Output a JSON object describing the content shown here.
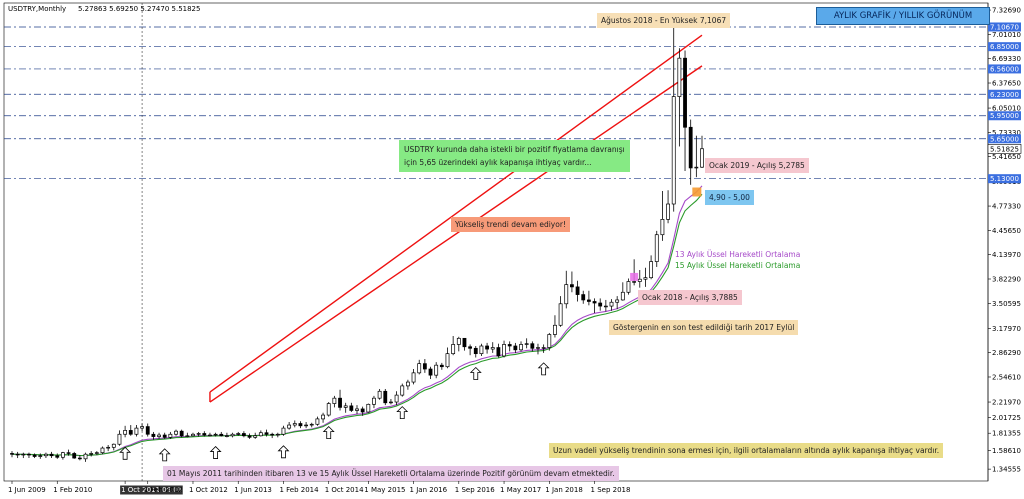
{
  "header": {
    "symbol": "USDTRY,Monthly",
    "ohlc": "5.27863 5.69250 5.27470 5.51825"
  },
  "title": "AYLIK GRAFİK / YILLIK GÖRÜNÜM",
  "annotations": {
    "ath": "Ağustos 2018 - En Yüksek 7,1067",
    "green_note_line1": "USDTRY kurunda daha istekli bir pozitif fiyatlama davranışı",
    "green_note_line2": "için 5,65 üzerindeki aylık kapanışa ihtiyaç vardır...",
    "ocak2019": "Ocak 2019 - Açılış 5,2785",
    "support_zone": "4,90 - 5,00",
    "trend": "Yükseliş trendi devam ediyor!",
    "ema13": "13 Aylık Üssel Hareketli Ortalama",
    "ema15": "15 Aylık Üssel Hareketli Ortalama",
    "ocak2018": "Ocak 2018 - Açılış 3,7885",
    "last_test": "Göstergenin en son test edildiği tarih 2017 Eylül",
    "warning": "Uzun vadeli yükseliş trendinin sona ermesi için, ilgili ortalamaların altında aylık kapanışa ihtiyaç vardır.",
    "footer_note": "01 Mayıs 2011 tarihinden itibaren 13 ve 15 Aylık Üssel Hareketli Ortalama üzerinde Pozitif görünüm devam etmektedir."
  },
  "colors": {
    "ema13": "#a64ac9",
    "ema15": "#2a9a2a",
    "channel": "#ee1111",
    "level_line": "#1f3c88",
    "price_label_bg": "#3b6fe0",
    "title_bg": "#5aa9ea"
  },
  "chart_data": {
    "type": "candlestick",
    "title": "AYLIK GRAFİK / YILLIK GÖRÜNÜM",
    "timeframe": "Monthly",
    "x_tick_labels": [
      "1 Jun 2009",
      "1 Feb 2010",
      "1 Oct 2011.05.01 00:00",
      "1 Feb 2012",
      "1 Oct 2012",
      "1 Jun 2013",
      "1 Feb 2014",
      "1 Oct 2014",
      "1 May 2015",
      "1 Jan 2016",
      "1 Sep 2016",
      "1 May 2017",
      "1 Jan 2018",
      "1 Sep 2018"
    ],
    "x_tick_index": [
      0,
      8,
      20,
      24,
      32,
      40,
      48,
      56,
      63,
      71,
      79,
      87,
      95,
      103
    ],
    "y_ticks": [
      1.34555,
      1.5861,
      1.81355,
      2.01725,
      2.2197,
      2.5461,
      2.8629,
      3.1797,
      3.50595,
      3.8229,
      4.1397,
      4.4565,
      4.7733,
      5.0901,
      5.4165,
      5.7333,
      6.0501,
      6.3765,
      6.6933,
      7.0101,
      7.3269
    ],
    "ylim": [
      1.23,
      7.38
    ],
    "level_labels": [
      7.1067,
      6.85,
      6.56,
      6.23,
      5.95,
      5.65,
      5.51825,
      5.13
    ],
    "level_lines": [
      7.1067,
      6.85,
      6.56,
      6.23,
      5.95,
      5.65,
      5.13
    ],
    "series": [
      {
        "name": "USDTRY",
        "kind": "ohlc",
        "open": [
          1.55,
          1.54,
          1.53,
          1.54,
          1.53,
          1.51,
          1.52,
          1.54,
          1.52,
          1.5,
          1.56,
          1.55,
          1.49,
          1.48,
          1.54,
          1.55,
          1.56,
          1.62,
          1.63,
          1.67,
          1.8,
          1.85,
          1.8,
          1.88,
          1.9,
          1.8,
          1.77,
          1.79,
          1.76,
          1.8,
          1.84,
          1.78,
          1.78,
          1.8,
          1.81,
          1.79,
          1.79,
          1.8,
          1.78,
          1.78,
          1.8,
          1.81,
          1.78,
          1.76,
          1.78,
          1.82,
          1.8,
          1.79,
          1.8,
          1.88,
          1.92,
          1.94,
          1.91,
          1.92,
          1.93,
          2.0,
          2.05,
          2.2,
          2.27,
          2.15,
          2.17,
          2.11,
          2.13,
          2.09,
          2.19,
          2.27,
          2.36,
          2.21,
          2.22,
          2.31,
          2.43,
          2.48,
          2.6,
          2.72,
          2.65,
          2.57,
          2.7,
          2.68,
          2.85,
          2.97,
          3.05,
          2.94,
          2.92,
          2.85,
          2.95,
          2.91,
          2.93,
          2.82,
          2.97,
          2.95,
          2.9,
          2.97,
          2.98,
          2.92,
          2.93,
          2.93,
          3.1,
          3.22,
          3.5,
          3.75,
          3.72,
          3.62,
          3.55,
          3.53,
          3.51,
          3.47,
          3.47,
          3.52,
          3.55,
          3.65,
          3.79,
          3.79,
          3.82,
          3.84,
          4.05,
          4.4,
          4.6,
          4.8,
          6.2,
          6.7,
          5.8,
          5.27,
          5.28
        ],
        "high": [
          1.58,
          1.57,
          1.56,
          1.56,
          1.55,
          1.55,
          1.56,
          1.57,
          1.55,
          1.57,
          1.6,
          1.57,
          1.53,
          1.56,
          1.58,
          1.58,
          1.64,
          1.66,
          1.68,
          1.85,
          1.91,
          1.92,
          1.92,
          1.94,
          1.94,
          1.83,
          1.82,
          1.82,
          1.83,
          1.86,
          1.86,
          1.82,
          1.82,
          1.83,
          1.84,
          1.82,
          1.82,
          1.83,
          1.82,
          1.82,
          1.83,
          1.84,
          1.81,
          1.82,
          1.85,
          1.86,
          1.82,
          1.82,
          1.91,
          1.96,
          1.98,
          1.97,
          1.96,
          1.95,
          2.03,
          2.08,
          2.22,
          2.3,
          2.38,
          2.21,
          2.21,
          2.18,
          2.16,
          2.2,
          2.3,
          2.39,
          2.39,
          2.26,
          2.36,
          2.46,
          2.51,
          2.65,
          2.77,
          2.78,
          2.68,
          2.74,
          2.73,
          2.93,
          3.08,
          3.07,
          3.01,
          2.97,
          2.95,
          2.98,
          2.99,
          3.0,
          2.98,
          3.02,
          3.01,
          2.99,
          3.01,
          3.05,
          3.01,
          2.98,
          2.97,
          3.12,
          3.35,
          3.6,
          3.93,
          3.92,
          3.8,
          3.67,
          3.67,
          3.57,
          3.57,
          3.55,
          3.56,
          3.6,
          3.78,
          3.83,
          4.08,
          3.94,
          3.97,
          4.13,
          4.45,
          4.97,
          4.98,
          7.11,
          6.83,
          6.8,
          5.9,
          5.69,
          5.69
        ],
        "low": [
          1.5,
          1.49,
          1.49,
          1.49,
          1.49,
          1.48,
          1.49,
          1.49,
          1.48,
          1.47,
          1.52,
          1.48,
          1.46,
          1.44,
          1.51,
          1.53,
          1.54,
          1.58,
          1.59,
          1.65,
          1.76,
          1.78,
          1.77,
          1.84,
          1.77,
          1.73,
          1.74,
          1.74,
          1.74,
          1.78,
          1.76,
          1.76,
          1.77,
          1.77,
          1.77,
          1.77,
          1.77,
          1.77,
          1.76,
          1.76,
          1.78,
          1.76,
          1.74,
          1.74,
          1.77,
          1.77,
          1.75,
          1.76,
          1.78,
          1.86,
          1.89,
          1.88,
          1.88,
          1.89,
          1.91,
          1.95,
          2.03,
          2.15,
          2.11,
          2.08,
          2.09,
          2.06,
          2.04,
          2.08,
          2.14,
          2.25,
          2.18,
          2.19,
          2.18,
          2.29,
          2.38,
          2.45,
          2.58,
          2.6,
          2.52,
          2.53,
          2.64,
          2.66,
          2.83,
          2.88,
          2.89,
          2.83,
          2.8,
          2.82,
          2.85,
          2.86,
          2.8,
          2.8,
          2.88,
          2.86,
          2.88,
          2.92,
          2.88,
          2.84,
          2.86,
          2.89,
          3.06,
          3.2,
          3.44,
          3.65,
          3.53,
          3.5,
          3.48,
          3.38,
          3.41,
          3.4,
          3.41,
          3.43,
          3.54,
          3.62,
          3.74,
          3.71,
          3.72,
          3.82,
          3.98,
          4.32,
          4.55,
          4.7,
          5.55,
          5.23,
          5.05,
          5.15,
          5.27
        ],
        "close": [
          1.54,
          1.53,
          1.54,
          1.53,
          1.51,
          1.52,
          1.54,
          1.52,
          1.5,
          1.56,
          1.55,
          1.49,
          1.48,
          1.54,
          1.55,
          1.56,
          1.62,
          1.63,
          1.67,
          1.8,
          1.85,
          1.8,
          1.88,
          1.9,
          1.8,
          1.77,
          1.79,
          1.76,
          1.8,
          1.84,
          1.78,
          1.78,
          1.8,
          1.81,
          1.79,
          1.79,
          1.8,
          1.78,
          1.78,
          1.8,
          1.81,
          1.78,
          1.76,
          1.78,
          1.82,
          1.8,
          1.79,
          1.8,
          1.88,
          1.92,
          1.94,
          1.91,
          1.92,
          1.93,
          2.0,
          2.05,
          2.2,
          2.27,
          2.15,
          2.17,
          2.11,
          2.13,
          2.09,
          2.19,
          2.27,
          2.36,
          2.21,
          2.22,
          2.31,
          2.43,
          2.48,
          2.6,
          2.72,
          2.65,
          2.57,
          2.7,
          2.68,
          2.85,
          2.97,
          3.05,
          2.94,
          2.92,
          2.85,
          2.95,
          2.91,
          2.93,
          2.82,
          2.97,
          2.95,
          2.9,
          2.97,
          2.98,
          2.92,
          2.93,
          2.93,
          3.1,
          3.22,
          3.5,
          3.75,
          3.72,
          3.62,
          3.55,
          3.53,
          3.51,
          3.47,
          3.47,
          3.52,
          3.55,
          3.65,
          3.79,
          3.79,
          3.82,
          3.84,
          4.05,
          4.4,
          4.6,
          4.8,
          6.2,
          6.7,
          5.8,
          5.27,
          5.28,
          5.52
        ]
      },
      {
        "name": "13 Aylık Üssel Hareketli Ortalama",
        "kind": "ema",
        "period": 13
      },
      {
        "name": "15 Aylık Üssel Hareketli Ortalama",
        "kind": "ema",
        "period": 15
      }
    ],
    "channel": {
      "upper": [
        [
          35,
          2.35
        ],
        [
          122,
          7.0
        ]
      ],
      "lower": [
        [
          35,
          2.22
        ],
        [
          122,
          6.6
        ]
      ]
    },
    "up_arrows_at_index": [
      20,
      27,
      36,
      48,
      56,
      69,
      82,
      94
    ],
    "grid": false
  }
}
